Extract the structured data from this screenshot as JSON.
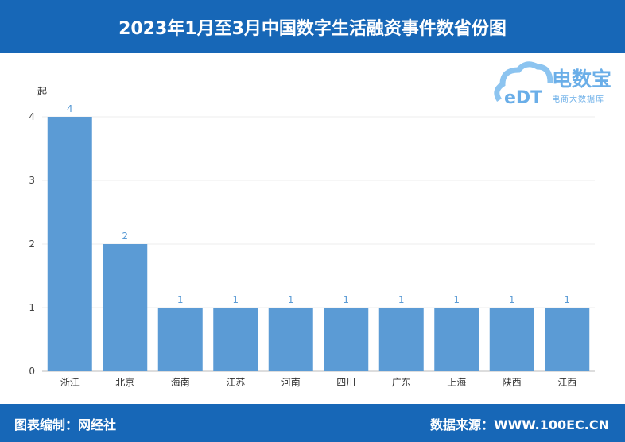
{
  "header": {
    "title": "2023年1月至3月中国数字生活融资事件数省份图"
  },
  "footer": {
    "left": "图表编制：网经社",
    "right": "数据来源：WWW.100EC.CN"
  },
  "logo": {
    "name": "电数宝",
    "tagline": "电商大数据库",
    "mark": "eDT"
  },
  "colors": {
    "header": "#1767b7",
    "bar": "#5b9bd5",
    "label": "#5b9bd5"
  },
  "chart_data": {
    "type": "bar",
    "ylabel": "起",
    "ylim": [
      0,
      4
    ],
    "yticks": [
      "0",
      "1",
      "2",
      "3",
      "4"
    ],
    "grid": true,
    "categories": [
      "浙江",
      "北京",
      "海南",
      "江苏",
      "河南",
      "四川",
      "广东",
      "上海",
      "陕西",
      "江西"
    ],
    "values": [
      4,
      2,
      1,
      1,
      1,
      1,
      1,
      1,
      1,
      1
    ]
  }
}
